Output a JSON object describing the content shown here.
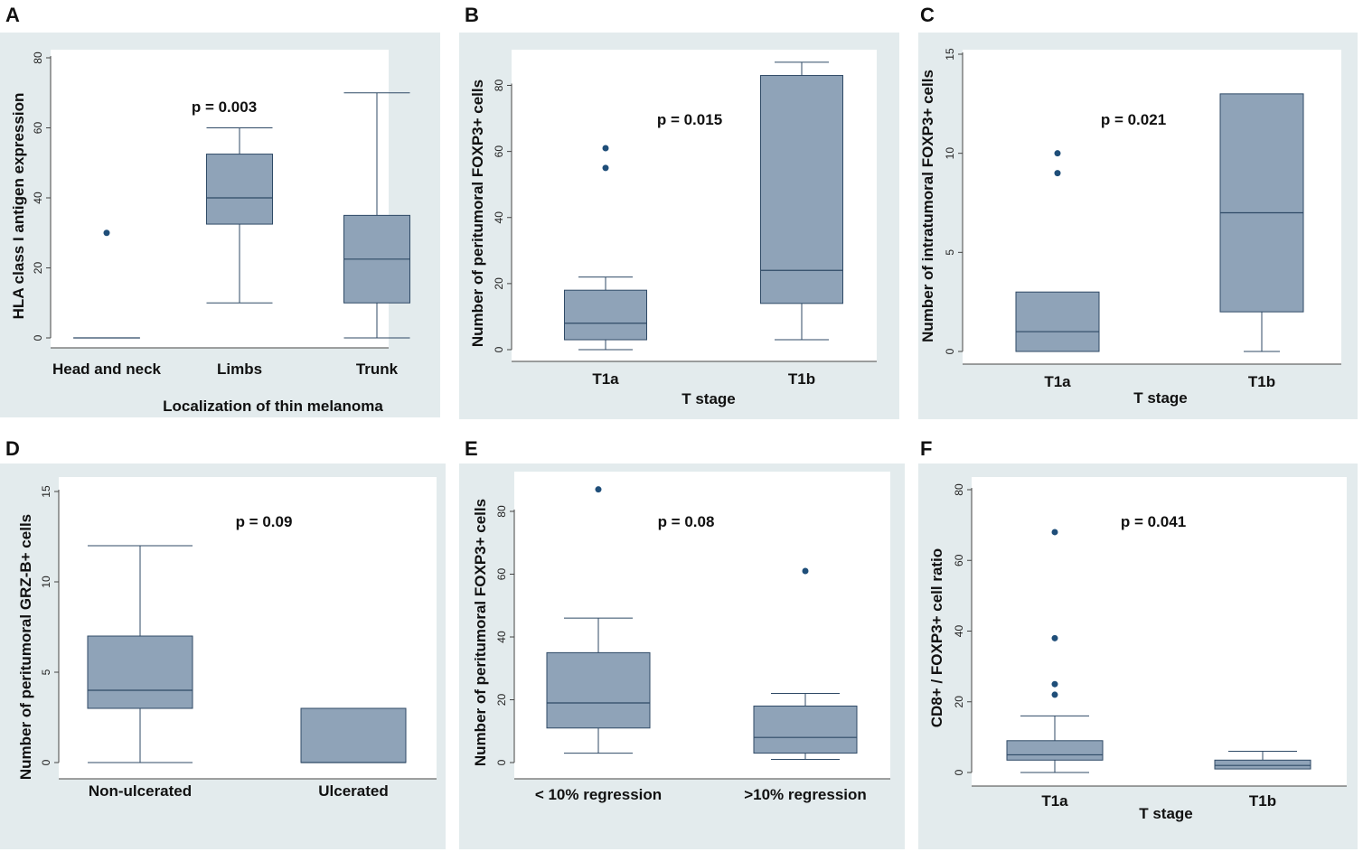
{
  "figure": {
    "colors": {
      "panel_bg": "#e3ebed",
      "plot_bg": "#ffffff",
      "box_fill": "#8fa3b8",
      "box_stroke": "#2f4a66",
      "outlier": "#1f4e79",
      "axis": "#444444"
    }
  },
  "chart_data": [
    {
      "id": "A",
      "type": "box",
      "panel_label": "A",
      "ylabel": "HLA class I antigen expression",
      "xlabel": "Localization of thin melanoma",
      "ylim": [
        0,
        80
      ],
      "yticks": [
        0,
        20,
        40,
        60,
        80
      ],
      "annotation": "p = 0.003",
      "categories": [
        "Head and neck",
        "Limbs",
        "Trunk"
      ],
      "boxes": [
        {
          "min": 0,
          "q1": 0,
          "median": 0,
          "q3": 0,
          "max": 0,
          "outliers": [
            30
          ]
        },
        {
          "min": 10,
          "q1": 32.5,
          "median": 40,
          "q3": 52.5,
          "max": 60,
          "outliers": []
        },
        {
          "min": 0,
          "q1": 10,
          "median": 22.5,
          "q3": 35,
          "max": 70,
          "outliers": []
        }
      ]
    },
    {
      "id": "B",
      "type": "box",
      "panel_label": "B",
      "ylabel": "Number of peritumoral FOXP3+ cells",
      "xlabel": "T stage",
      "ylim": [
        0,
        90
      ],
      "yticks": [
        0,
        20,
        40,
        60,
        80
      ],
      "annotation": "p = 0.015",
      "categories": [
        "T1a",
        "T1b"
      ],
      "boxes": [
        {
          "min": 0,
          "q1": 3,
          "median": 8,
          "q3": 18,
          "max": 22,
          "outliers": [
            55,
            61
          ]
        },
        {
          "min": 3,
          "q1": 14,
          "median": 24,
          "q3": 83,
          "max": 87,
          "outliers": []
        }
      ]
    },
    {
      "id": "C",
      "type": "box",
      "panel_label": "C",
      "ylabel": "Number of intratumoral FOXP3+ cells",
      "xlabel": "T stage",
      "ylim": [
        0,
        15
      ],
      "yticks": [
        0,
        5,
        10,
        15
      ],
      "annotation": "p = 0.021",
      "categories": [
        "T1a",
        "T1b"
      ],
      "boxes": [
        {
          "min": 0,
          "q1": 0,
          "median": 1,
          "q3": 3,
          "max": 3,
          "outliers": [
            9,
            10
          ]
        },
        {
          "min": 0,
          "q1": 2,
          "median": 7,
          "q3": 13,
          "max": 13,
          "outliers": []
        }
      ]
    },
    {
      "id": "D",
      "type": "box",
      "panel_label": "D",
      "ylabel": "Number of peritumoral GRZ-B+ cells",
      "xlabel": "",
      "ylim": [
        0,
        15
      ],
      "yticks": [
        0,
        5,
        10,
        15
      ],
      "annotation": "p = 0.09",
      "categories": [
        "Non-ulcerated",
        "Ulcerated"
      ],
      "boxes": [
        {
          "min": 0,
          "q1": 3,
          "median": 4,
          "q3": 7,
          "max": 12,
          "outliers": []
        },
        {
          "min": 0,
          "q1": 0,
          "median": 0,
          "q3": 3,
          "max": 3,
          "outliers": []
        }
      ]
    },
    {
      "id": "E",
      "type": "box",
      "panel_label": "E",
      "ylabel": "Number of peritumoral FOXP3+ cells",
      "xlabel": "",
      "ylim": [
        0,
        90
      ],
      "yticks": [
        0,
        20,
        40,
        60,
        80
      ],
      "annotation": "p = 0.08",
      "categories": [
        "< 10% regression",
        ">10% regression"
      ],
      "boxes": [
        {
          "min": 3,
          "q1": 11,
          "median": 19,
          "q3": 35,
          "max": 46,
          "outliers": [
            87
          ]
        },
        {
          "min": 1,
          "q1": 3,
          "median": 8,
          "q3": 18,
          "max": 22,
          "outliers": [
            61
          ]
        }
      ]
    },
    {
      "id": "F",
      "type": "box",
      "panel_label": "F",
      "ylabel": "CD8+ / FOXP3+ cell ratio",
      "xlabel": "T stage",
      "ylim": [
        0,
        80
      ],
      "yticks": [
        0,
        20,
        40,
        60,
        80
      ],
      "annotation": "p = 0.041",
      "categories": [
        "T1a",
        "T1b"
      ],
      "boxes": [
        {
          "min": 0,
          "q1": 3.5,
          "median": 5,
          "q3": 9,
          "max": 16,
          "outliers": [
            22,
            25,
            38,
            68
          ]
        },
        {
          "min": 1,
          "q1": 1,
          "median": 2,
          "q3": 3.5,
          "max": 6,
          "outliers": []
        }
      ]
    }
  ]
}
